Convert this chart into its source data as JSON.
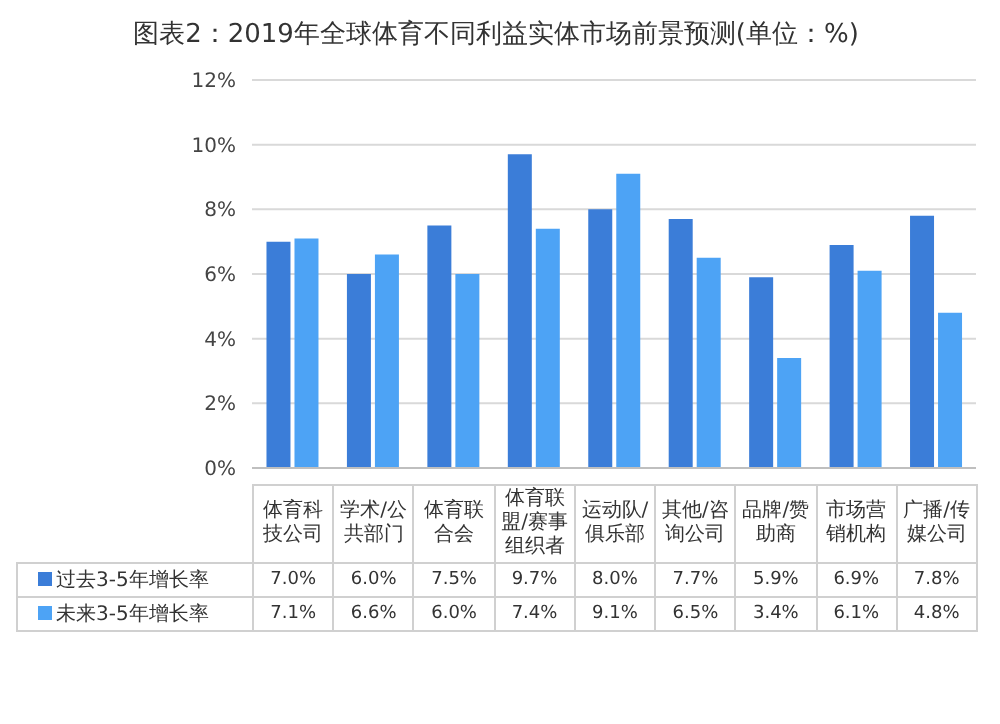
{
  "chart_data": {
    "type": "bar",
    "title": "图表2：2019年全球体育不同利益实体市场前景预测(单位：%)",
    "categories": [
      "体育科技公司",
      "学术/公共部门",
      "体育联合会",
      "体育联盟/赛事组织者",
      "运动队/俱乐部",
      "其他/咨询公司",
      "品牌/赞助商",
      "市场营销机构",
      "广播/传媒公司"
    ],
    "series": [
      {
        "name": "过去3-5年增长率",
        "color": "#3b7dd8",
        "values": [
          7.0,
          6.0,
          7.5,
          9.7,
          8.0,
          7.7,
          5.9,
          6.9,
          7.8
        ],
        "value_labels": [
          "7.0%",
          "6.0%",
          "7.5%",
          "9.7%",
          "8.0%",
          "7.7%",
          "5.9%",
          "6.9%",
          "7.8%"
        ]
      },
      {
        "name": "未来3-5年增长率",
        "color": "#4da3f5",
        "values": [
          7.1,
          6.6,
          6.0,
          7.4,
          9.1,
          6.5,
          3.4,
          6.1,
          4.8
        ],
        "value_labels": [
          "7.1%",
          "6.6%",
          "6.0%",
          "7.4%",
          "9.1%",
          "6.5%",
          "3.4%",
          "6.1%",
          "4.8%"
        ]
      }
    ],
    "ylim": [
      0,
      12
    ],
    "yticks": [
      {
        "value": 0,
        "label": "0%"
      },
      {
        "value": 2,
        "label": "2%"
      },
      {
        "value": 4,
        "label": "4%"
      },
      {
        "value": 6,
        "label": "6%"
      },
      {
        "value": 8,
        "label": "8%"
      },
      {
        "value": 10,
        "label": "10%"
      },
      {
        "value": 12,
        "label": "12%"
      }
    ],
    "grid": "y",
    "legend": "bottom"
  }
}
